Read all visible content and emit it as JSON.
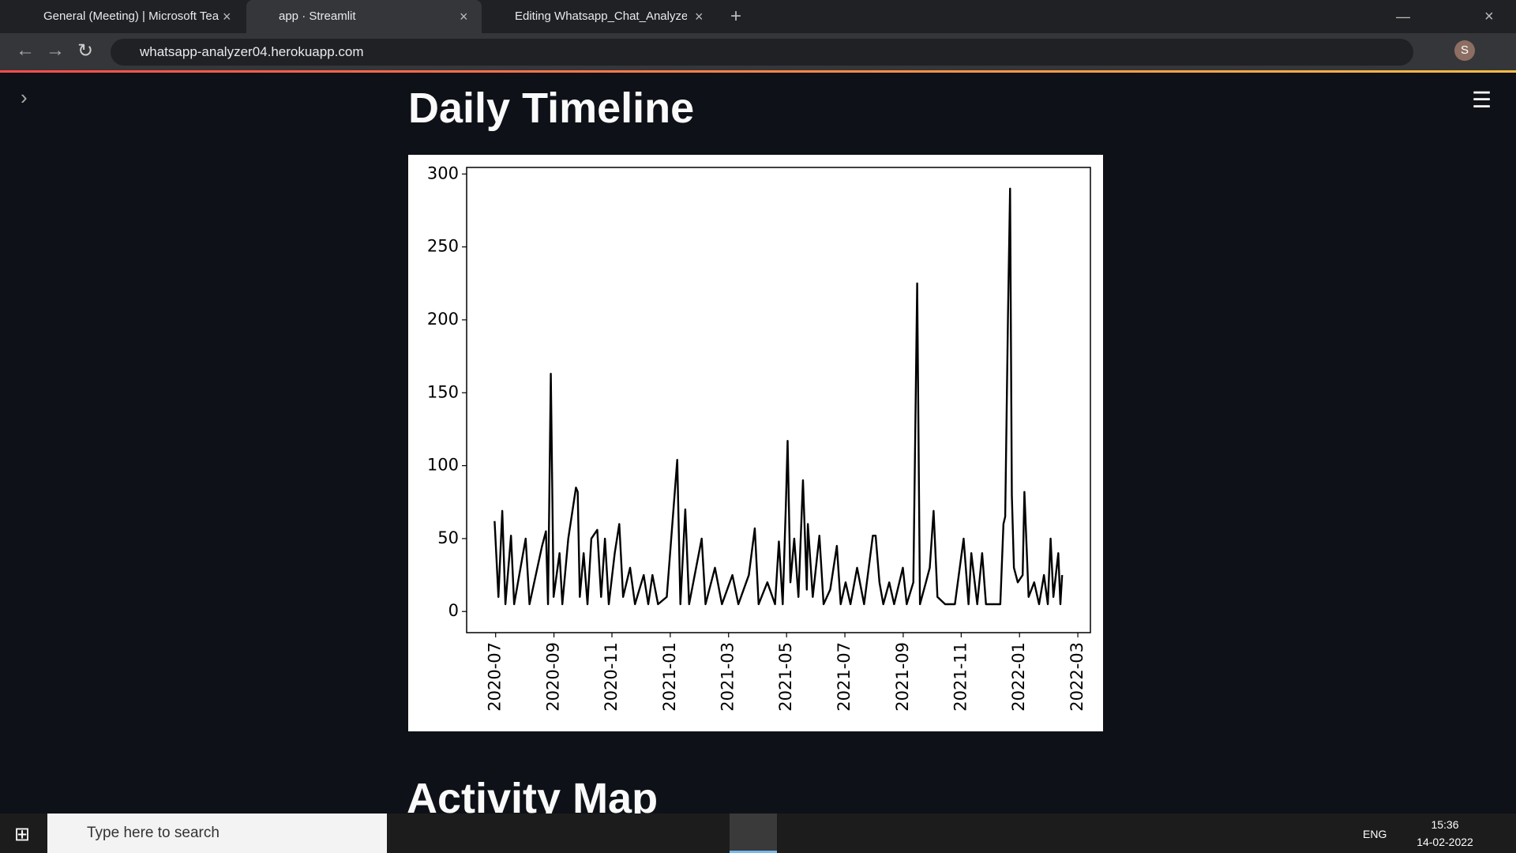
{
  "browser": {
    "tabs": [
      "General (Meeting) | Microsoft Tea",
      "app · Streamlit",
      "Editing Whatsapp_Chat_Analyzer"
    ],
    "url": "whatsapp-analyzer04.herokuapp.com",
    "avatar": "S"
  },
  "page": {
    "heading": "Daily Timeline",
    "next_heading": "Activity Map"
  },
  "chart_data": {
    "type": "line",
    "color": "#000000",
    "x": [
      2020.497,
      2020.508,
      2020.519,
      2020.528,
      2020.544,
      2020.553,
      2020.586,
      2020.597,
      2020.633,
      2020.644,
      2020.65,
      2020.658,
      2020.666,
      2020.683,
      2020.691,
      2020.708,
      2020.73,
      2020.735,
      2020.741,
      2020.752,
      2020.763,
      2020.774,
      2020.791,
      2020.802,
      2020.813,
      2020.824,
      2020.841,
      2020.854,
      2020.865,
      2020.885,
      2020.899,
      2020.924,
      2020.937,
      2020.949,
      2020.965,
      2020.99,
      2021.02,
      2021.029,
      2021.043,
      2021.054,
      2021.09,
      2021.101,
      2021.128,
      2021.148,
      2021.178,
      2021.195,
      2021.225,
      2021.242,
      2021.253,
      2021.278,
      2021.3,
      2021.311,
      2021.322,
      2021.331,
      2021.336,
      2021.344,
      2021.355,
      2021.367,
      2021.38,
      2021.391,
      2021.394,
      2021.408,
      2021.427,
      2021.439,
      2021.458,
      2021.477,
      2021.488,
      2021.502,
      2021.516,
      2021.535,
      2021.555,
      2021.58,
      2021.588,
      2021.599,
      2021.61,
      2021.627,
      2021.641,
      2021.666,
      2021.677,
      2021.696,
      2021.707,
      2021.715,
      2021.732,
      2021.743,
      2021.754,
      2021.765,
      2021.787,
      2021.815,
      2021.84,
      2021.854,
      2021.862,
      2021.879,
      2021.893,
      2021.904,
      2021.931,
      2021.945,
      2021.954,
      2021.959,
      2021.967,
      2021.973,
      2021.978,
      2021.984,
      2021.995,
      2022.009,
      2022.014,
      2022.026,
      2022.042,
      2022.056,
      2022.07,
      2022.081,
      2022.089,
      2022.097,
      2022.111,
      2022.117,
      2022.122
    ],
    "values": [
      62,
      10,
      69,
      5,
      52,
      5,
      50,
      5,
      45,
      55,
      5,
      163,
      10,
      40,
      5,
      50,
      85,
      82,
      10,
      40,
      5,
      50,
      56,
      10,
      50,
      5,
      40,
      60,
      10,
      30,
      5,
      25,
      5,
      25,
      5,
      10,
      104,
      5,
      70,
      5,
      50,
      5,
      30,
      5,
      25,
      5,
      25,
      57,
      5,
      20,
      5,
      48,
      5,
      73,
      117,
      20,
      50,
      10,
      90,
      15,
      60,
      10,
      52,
      5,
      15,
      45,
      5,
      20,
      5,
      30,
      5,
      52,
      52,
      20,
      5,
      20,
      5,
      30,
      5,
      20,
      225,
      5,
      20,
      30,
      69,
      10,
      5,
      5,
      50,
      5,
      40,
      5,
      40,
      5,
      5,
      5,
      60,
      65,
      203,
      290,
      80,
      30,
      20,
      25,
      82,
      10,
      20,
      5,
      25,
      5,
      50,
      10,
      40,
      5,
      25
    ],
    "xlim": [
      2020.417,
      2022.203
    ],
    "xticks": [
      {
        "value": 2020.5,
        "label": "2020-07"
      },
      {
        "value": 2020.667,
        "label": "2020-09"
      },
      {
        "value": 2020.833,
        "label": "2020-11"
      },
      {
        "value": 2021.0,
        "label": "2021-01"
      },
      {
        "value": 2021.167,
        "label": "2021-03"
      },
      {
        "value": 2021.333,
        "label": "2021-05"
      },
      {
        "value": 2021.5,
        "label": "2021-07"
      },
      {
        "value": 2021.667,
        "label": "2021-09"
      },
      {
        "value": 2021.833,
        "label": "2021-11"
      },
      {
        "value": 2022.0,
        "label": "2022-01"
      },
      {
        "value": 2022.167,
        "label": "2022-03"
      }
    ],
    "ylim": [
      -14.5,
      304.5
    ],
    "yticks": [
      0,
      50,
      100,
      150,
      200,
      250,
      300
    ]
  },
  "taskbar": {
    "search": "Type here to search",
    "language": "ENG",
    "time": "15:36",
    "date": "14-02-2022"
  }
}
